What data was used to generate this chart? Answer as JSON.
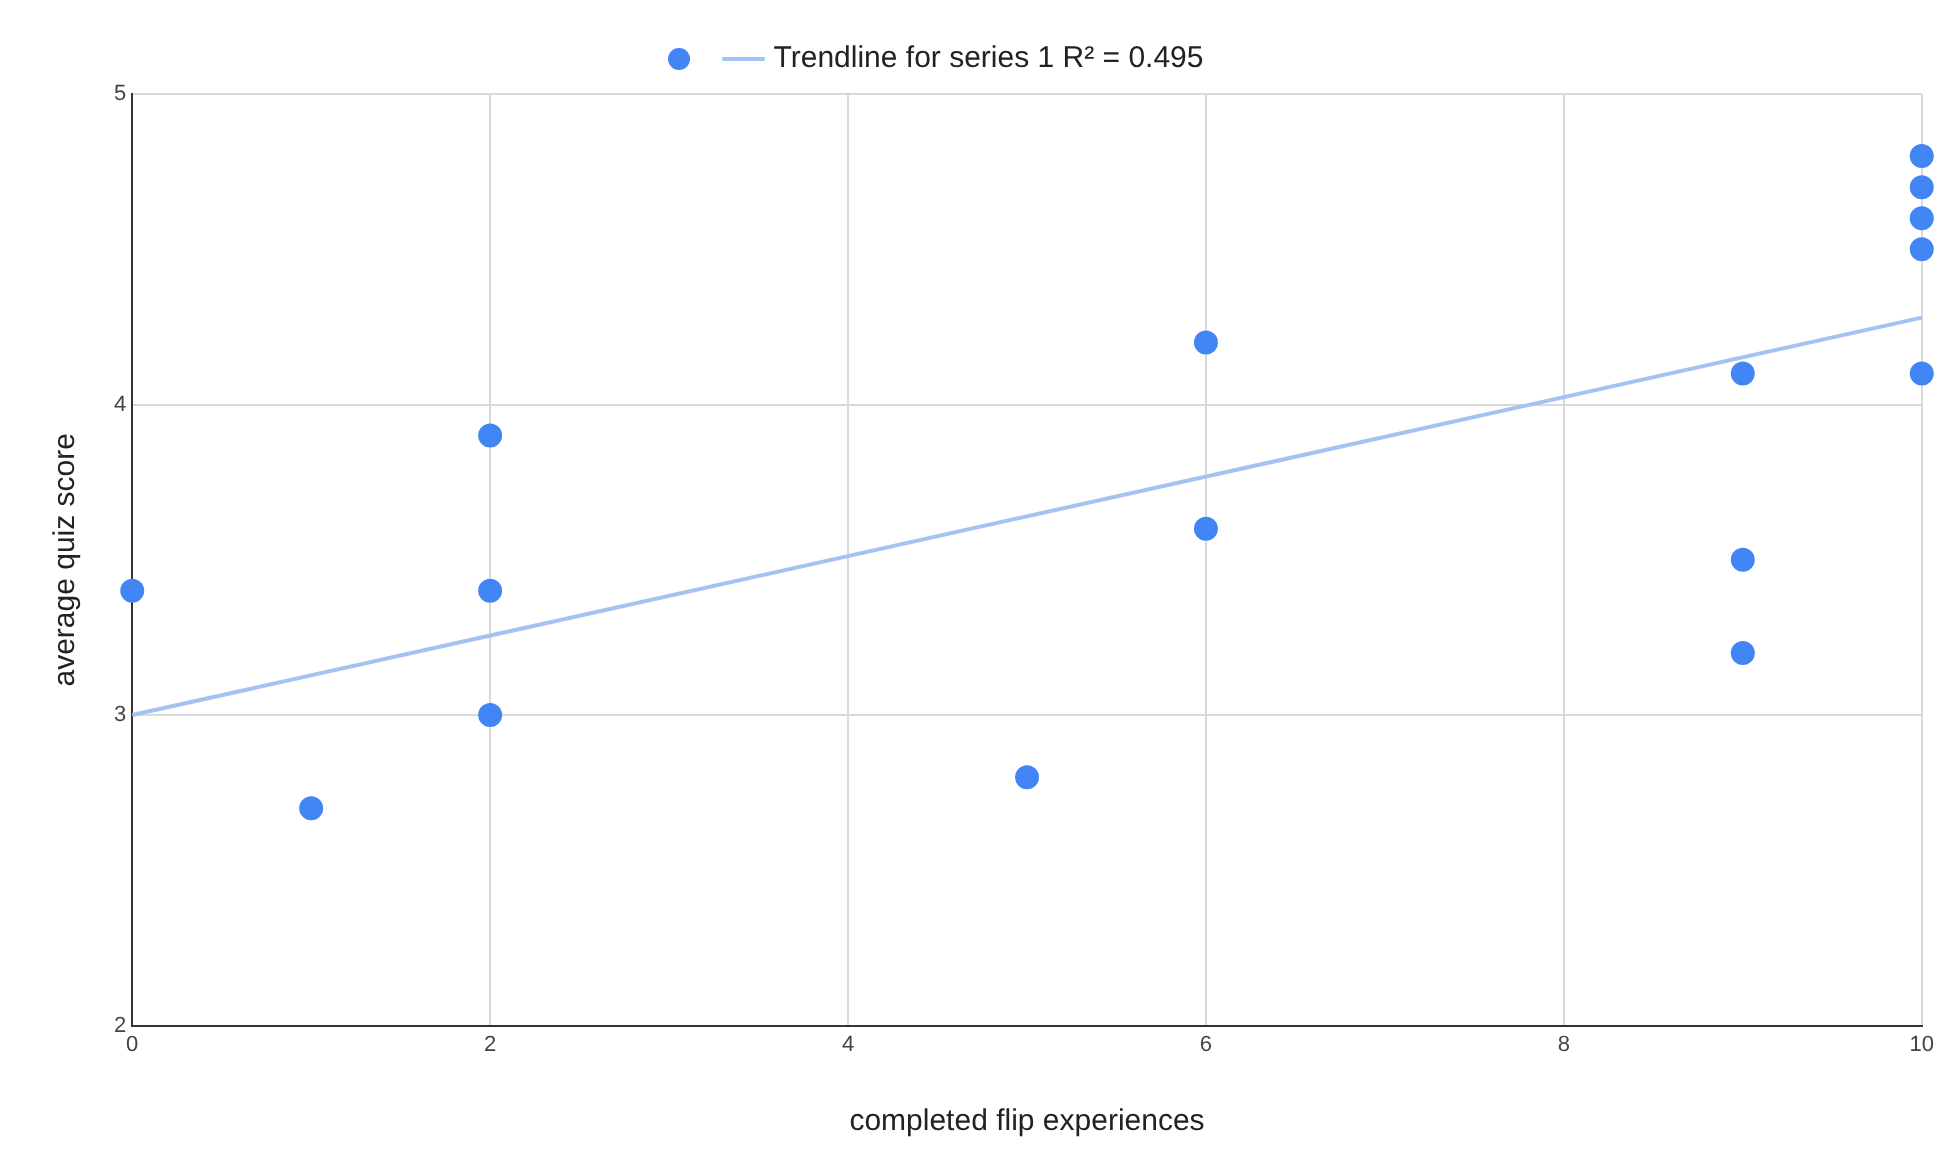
{
  "chart_data": {
    "type": "scatter",
    "xlabel": "completed flip experiences",
    "ylabel": "average quiz score",
    "series": [
      {
        "marker": "circle",
        "color": "#4285f4",
        "x": [
          0,
          1,
          2,
          2,
          2,
          5,
          6,
          6,
          9,
          9,
          9,
          10,
          10,
          10,
          10,
          10
        ],
        "values": [
          3.4,
          2.7,
          3.9,
          3.4,
          3.0,
          2.8,
          4.2,
          3.6,
          4.1,
          3.5,
          3.2,
          4.8,
          4.7,
          4.6,
          4.5,
          4.1
        ]
      },
      {
        "type": "line",
        "name": "Trendline for series 1 R² = 0.495",
        "color": "#a4c2f4",
        "x": [
          0,
          10
        ],
        "values": [
          3.0,
          4.28
        ]
      }
    ],
    "xlim": [
      0,
      10
    ],
    "xticks": [
      0,
      2,
      4,
      6,
      8,
      10
    ],
    "ylim": [
      2,
      5
    ],
    "yticks": [
      2,
      3,
      4,
      5
    ],
    "grid": true,
    "legend": "top"
  }
}
